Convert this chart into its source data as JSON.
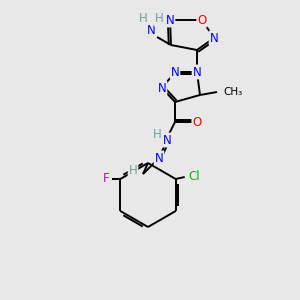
{
  "background_color": "#e8e8e8",
  "atom_colors": {
    "N": "#0000ff",
    "O": "#ff0000",
    "C": "#000000",
    "H": "#70a0a0",
    "F": "#cc00cc",
    "Cl": "#00bb00"
  },
  "bond_color": "#000000",
  "font_size": 8.5
}
